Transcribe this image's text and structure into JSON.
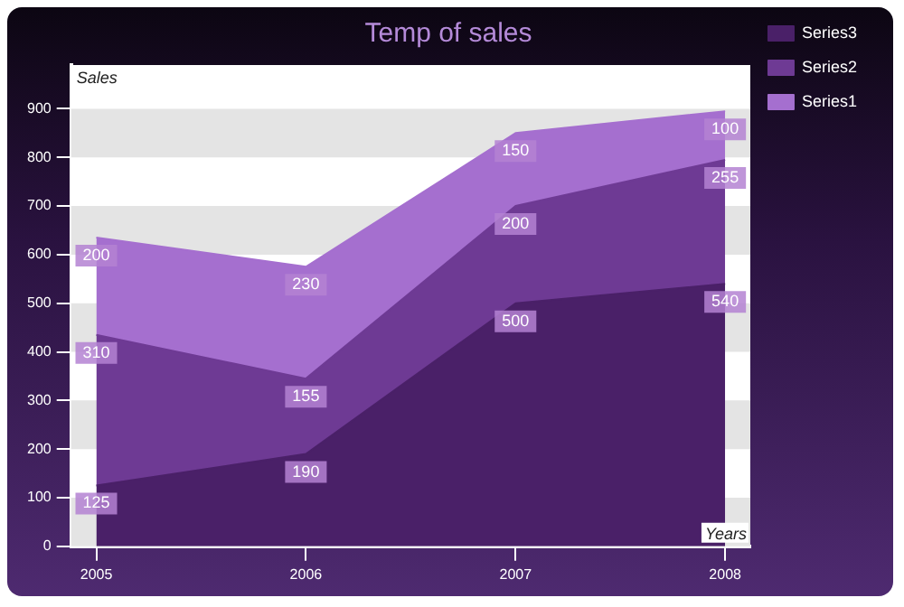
{
  "chart_data": {
    "type": "area",
    "title": "Temp of sales",
    "xlabel": "Years",
    "ylabel": "Sales",
    "stacked": true,
    "data_labels": true,
    "legend": "top right",
    "grid": true,
    "x": [
      2005,
      2006,
      2007,
      2008
    ],
    "xlim": [
      2004.88,
      2008.12
    ],
    "xticks": [
      2005,
      2006,
      2007,
      2008
    ],
    "ylim": [
      0,
      990
    ],
    "yticks": [
      0,
      100,
      200,
      300,
      400,
      500,
      600,
      700,
      800,
      900
    ],
    "series": [
      {
        "name": "Series3",
        "color": "#4a2068",
        "values": [
          125,
          190,
          500,
          540
        ]
      },
      {
        "name": "Series2",
        "color": "#6e3a94",
        "values": [
          310,
          155,
          200,
          255
        ]
      },
      {
        "name": "Series1",
        "color": "#a56fcf",
        "values": [
          200,
          230,
          150,
          100
        ]
      }
    ]
  }
}
